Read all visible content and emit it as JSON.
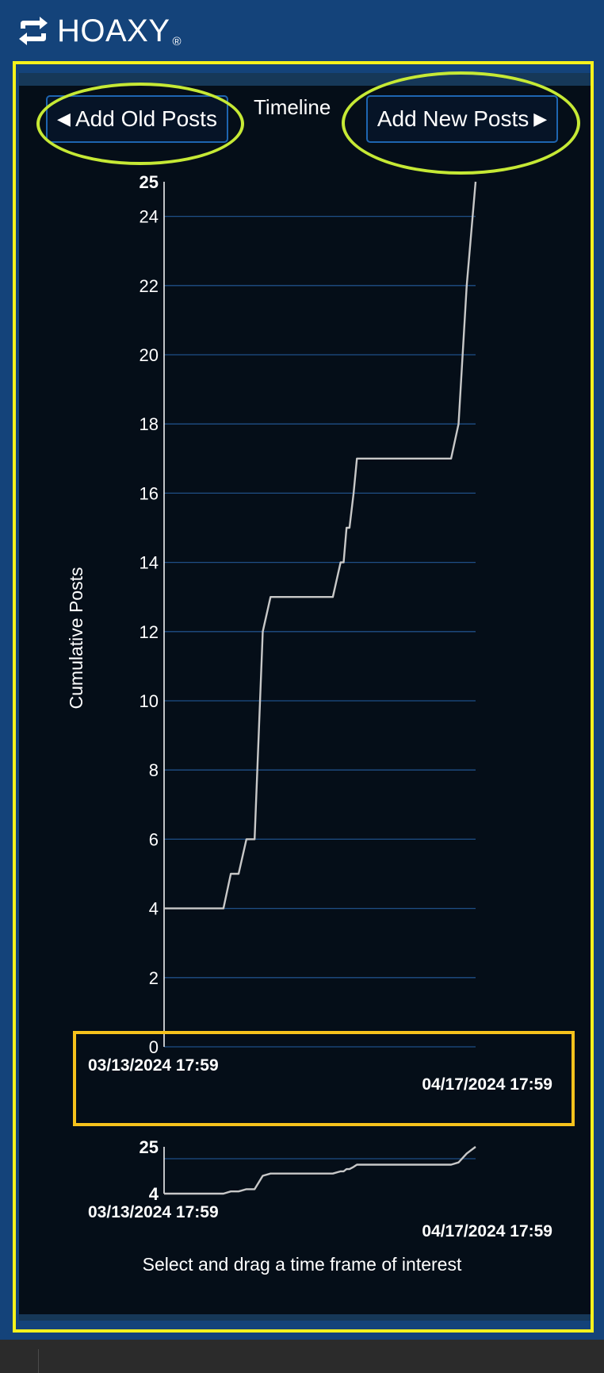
{
  "header": {
    "brand_name": "HOAXY",
    "registered_mark": "®",
    "logo_icon": "retweet-arrows-icon"
  },
  "timeline": {
    "title": "Timeline",
    "add_old_posts_label": "Add Old Posts",
    "add_new_posts_label": "Add New Posts",
    "left_arrow_icon": "triangle-left-icon",
    "right_arrow_icon": "triangle-right-icon",
    "hint": "Select and drag a time frame of interest"
  },
  "colors": {
    "header_bg": "#14437a",
    "panel_bg": "#050e18",
    "line": "#c8c8c8",
    "grid": "#1f4f86",
    "button_border": "#1e65b0",
    "highlight_yellow": "#f6f21c",
    "highlight_green": "#c6e935",
    "highlight_orange": "#f6c21c"
  },
  "chart_data": [
    {
      "type": "line",
      "ylabel": "Cumulative Posts",
      "ylim": [
        0,
        25
      ],
      "yticks": [
        "0",
        "2",
        "4",
        "6",
        "8",
        "10",
        "12",
        "14",
        "16",
        "18",
        "20",
        "22",
        "24"
      ],
      "ymax_label": "25",
      "x_start_label": "03/13/2024 17:59",
      "x_end_label": "04/17/2024 17:59",
      "xlim": [
        "2024-03-13 17:59",
        "2024-04-17 17:59"
      ],
      "grid": true,
      "series": [
        {
          "x": [
            "2024-03-13 17:59",
            "2024-03-20 10:00",
            "2024-03-21 06:00",
            "2024-03-22 03:00",
            "2024-03-23 00:00",
            "2024-03-23 22:00",
            "2024-03-24 20:00",
            "2024-03-25 17:00",
            "2024-03-26 14:00",
            "2024-04-01 17:00",
            "2024-04-02 14:00",
            "2024-04-02 22:00",
            "2024-04-03 06:00",
            "2024-04-03 14:00",
            "2024-04-04 01:00",
            "2024-04-04 10:00",
            "2024-04-04 20:00",
            "2024-04-05 06:00",
            "2024-04-05 16:00",
            "2024-04-06 02:00",
            "2024-04-06 12:00",
            "2024-04-06 22:00",
            "2024-04-07 08:00",
            "2024-04-07 18:00",
            "2024-04-15 00:00",
            "2024-04-15 20:00",
            "2024-04-16 18:00",
            "2024-04-17 17:59"
          ],
          "y": [
            4,
            4,
            5,
            5,
            6,
            6,
            12,
            13,
            13,
            13,
            14,
            14,
            15,
            15,
            16,
            17,
            17,
            17,
            17,
            17,
            17,
            17,
            17,
            17,
            17,
            18,
            22,
            25
          ]
        }
      ]
    },
    {
      "type": "line",
      "ylim": [
        4,
        25
      ],
      "ytick_top": "25",
      "ytick_bottom": "4",
      "x_start_label": "03/13/2024 17:59",
      "x_end_label": "04/17/2024 17:59",
      "xlim": [
        "2024-03-13 17:59",
        "2024-04-17 17:59"
      ],
      "grid": true,
      "series": [
        {
          "x": [
            "2024-03-13 17:59",
            "2024-03-20 10:00",
            "2024-03-21 06:00",
            "2024-03-22 03:00",
            "2024-03-23 00:00",
            "2024-03-23 22:00",
            "2024-03-24 20:00",
            "2024-03-25 17:00",
            "2024-03-26 14:00",
            "2024-04-01 17:00",
            "2024-04-02 14:00",
            "2024-04-02 22:00",
            "2024-04-03 06:00",
            "2024-04-03 14:00",
            "2024-04-04 01:00",
            "2024-04-04 10:00",
            "2024-04-04 20:00",
            "2024-04-05 06:00",
            "2024-04-05 16:00",
            "2024-04-06 02:00",
            "2024-04-06 12:00",
            "2024-04-06 22:00",
            "2024-04-07 08:00",
            "2024-04-07 18:00",
            "2024-04-15 00:00",
            "2024-04-15 20:00",
            "2024-04-16 18:00",
            "2024-04-17 17:59"
          ],
          "y": [
            4,
            4,
            5,
            5,
            6,
            6,
            12,
            13,
            13,
            13,
            14,
            14,
            15,
            15,
            16,
            17,
            17,
            17,
            17,
            17,
            17,
            17,
            17,
            17,
            17,
            18,
            22,
            25
          ]
        }
      ]
    }
  ]
}
